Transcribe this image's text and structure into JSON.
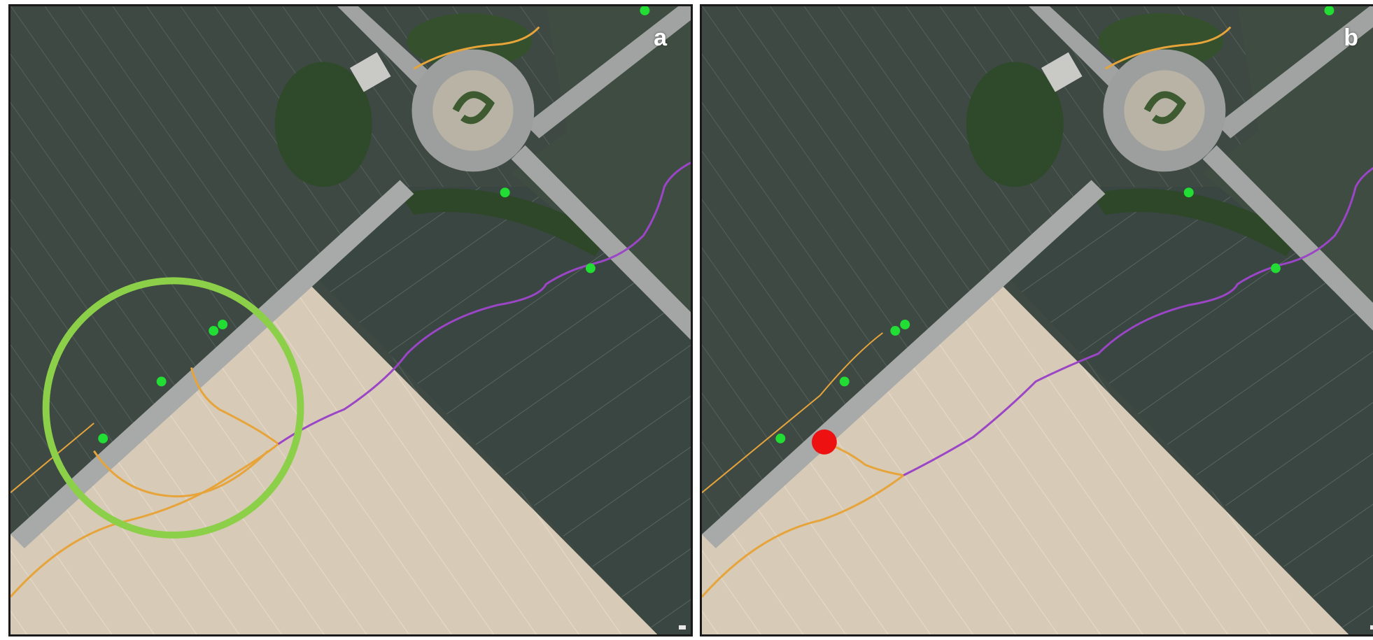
{
  "panels": [
    {
      "label": "a",
      "markers": [
        {
          "color": "#22dd33",
          "kind": "green-dot"
        },
        {
          "color": "#22dd33",
          "kind": "green-dot"
        },
        {
          "color": "#22dd33",
          "kind": "green-dot"
        },
        {
          "color": "#22dd33",
          "kind": "green-dot"
        },
        {
          "color": "#22dd33",
          "kind": "green-dot"
        },
        {
          "color": "#22dd33",
          "kind": "green-dot"
        },
        {
          "color": "#22dd33",
          "kind": "green-dot"
        }
      ],
      "highlight_circle": {
        "color": "#8ccf48"
      },
      "tracks": [
        {
          "color": "#9b45c7",
          "kind": "purple-track"
        },
        {
          "color": "#e6a43a",
          "kind": "orange-track"
        }
      ]
    },
    {
      "label": "b",
      "markers": [
        {
          "color": "#22dd33",
          "kind": "green-dot"
        },
        {
          "color": "#22dd33",
          "kind": "green-dot"
        },
        {
          "color": "#22dd33",
          "kind": "green-dot"
        },
        {
          "color": "#22dd33",
          "kind": "green-dot"
        },
        {
          "color": "#22dd33",
          "kind": "green-dot"
        },
        {
          "color": "#22dd33",
          "kind": "green-dot"
        },
        {
          "color": "#22dd33",
          "kind": "green-dot"
        }
      ],
      "red_marker": {
        "color": "#ee1111"
      },
      "tracks": [
        {
          "color": "#9b45c7",
          "kind": "purple-track"
        },
        {
          "color": "#e6a43a",
          "kind": "orange-track"
        }
      ]
    }
  ],
  "colors": {
    "field_dark": "#3f4a45",
    "field_light": "#d9ccb8",
    "road": "#a7aaa8",
    "vegetation": "#2f4a2a"
  }
}
